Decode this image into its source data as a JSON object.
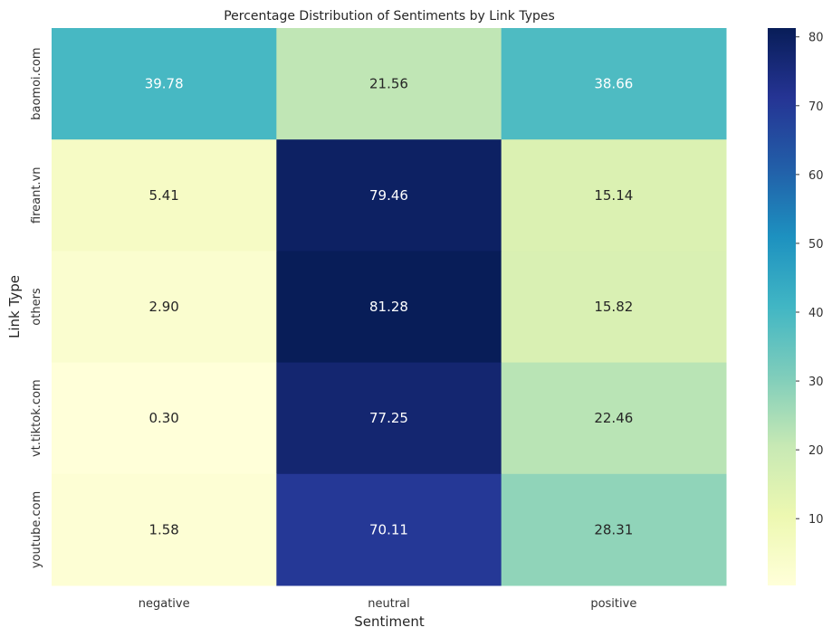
{
  "chart_data": {
    "type": "heatmap",
    "title": "Percentage Distribution of Sentiments by Link Types",
    "xlabel": "Sentiment",
    "ylabel": "Link Type",
    "x_categories": [
      "negative",
      "neutral",
      "positive"
    ],
    "y_categories": [
      "baomoi.com",
      "fireant.vn",
      "others",
      "vt.tiktok.com",
      "youtube.com"
    ],
    "values": [
      [
        39.78,
        21.56,
        38.66
      ],
      [
        5.41,
        79.46,
        15.14
      ],
      [
        2.9,
        81.28,
        15.82
      ],
      [
        0.3,
        77.25,
        22.46
      ],
      [
        1.58,
        70.11,
        28.31
      ]
    ],
    "value_labels": [
      [
        "39.78",
        "21.56",
        "38.66"
      ],
      [
        "5.41",
        "79.46",
        "15.14"
      ],
      [
        "2.90",
        "81.28",
        "15.82"
      ],
      [
        "0.30",
        "77.25",
        "22.46"
      ],
      [
        "1.58",
        "70.11",
        "28.31"
      ]
    ],
    "colormap": "YlGnBu",
    "colorbar": {
      "range": [
        0.3,
        81.28
      ],
      "ticks": [
        10,
        20,
        30,
        40,
        50,
        60,
        70,
        80
      ],
      "tick_labels": [
        "10",
        "20",
        "30",
        "40",
        "50",
        "60",
        "70",
        "80"
      ],
      "position": "right"
    },
    "grid": false
  },
  "colors": {
    "colormap_stops": [
      "#ffffd9",
      "#edf8b1",
      "#c7e9b4",
      "#7fcdbb",
      "#41b6c4",
      "#1d91c0",
      "#225ea8",
      "#253494",
      "#081d58"
    ],
    "text_dark": "#262626",
    "text_light": "#ffffff"
  }
}
